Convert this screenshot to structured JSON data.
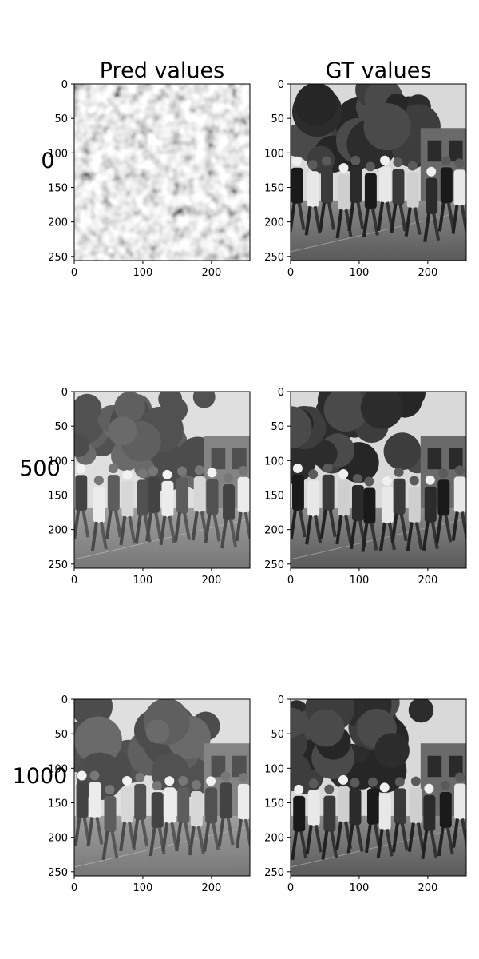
{
  "chart_data": {
    "type": "image-grid",
    "columns": [
      "Pred values",
      "GT values"
    ],
    "rows": [
      "0",
      "500",
      "1000"
    ],
    "xlim": [
      0,
      256
    ],
    "ylim": [
      256,
      0
    ],
    "xticks": [
      "0",
      "100",
      "200"
    ],
    "yticks": [
      "0",
      "50",
      "100",
      "150",
      "200",
      "250"
    ],
    "panels": [
      {
        "row": "0",
        "column": "Pred values",
        "content": "noise"
      },
      {
        "row": "0",
        "column": "GT values",
        "content": "photo"
      },
      {
        "row": "500",
        "column": "Pred values",
        "content": "photo"
      },
      {
        "row": "500",
        "column": "GT values",
        "content": "photo"
      },
      {
        "row": "1000",
        "column": "Pred values",
        "content": "photo"
      },
      {
        "row": "1000",
        "column": "GT values",
        "content": "photo"
      }
    ]
  }
}
